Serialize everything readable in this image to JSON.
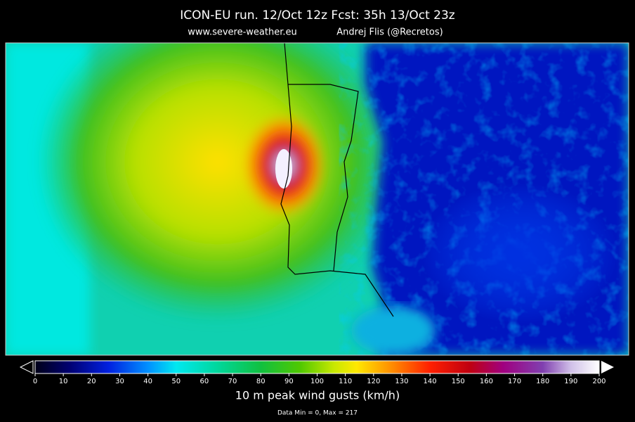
{
  "header": {
    "title": "ICON-EU  run. 12/Oct 12z   Fcst: 35h  13/Oct 23z",
    "website": "www.severe-weather.eu",
    "author": "Andrej Flis (@Recretos)"
  },
  "colorbar": {
    "range": [
      0,
      200
    ],
    "ticks": [
      0,
      10,
      20,
      30,
      40,
      50,
      60,
      70,
      80,
      90,
      100,
      110,
      120,
      130,
      140,
      150,
      160,
      170,
      180,
      190,
      200
    ],
    "label": "10 m peak wind gusts (km/h)"
  },
  "footer": {
    "stats": "Data Min = 0, Max = 217"
  }
}
